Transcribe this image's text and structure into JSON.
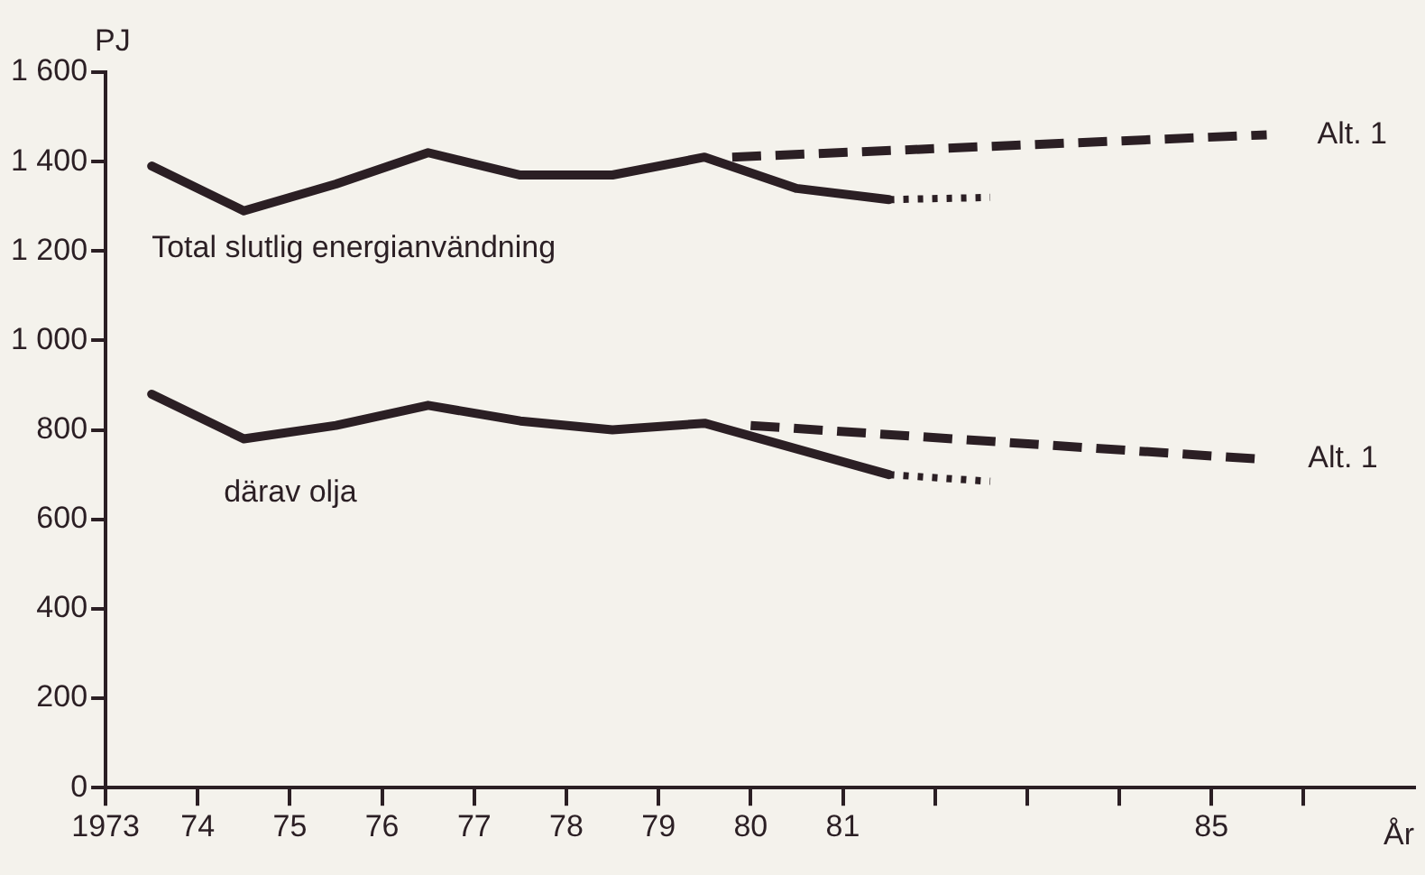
{
  "chart_data": {
    "type": "line",
    "xlabel": "År",
    "ylabel": "PJ",
    "xlim": [
      1973,
      1987.2
    ],
    "ylim": [
      0,
      1600
    ],
    "xticks": [
      {
        "value": 1973,
        "label": "1973"
      },
      {
        "value": 1974,
        "label": "74"
      },
      {
        "value": 1975,
        "label": "75"
      },
      {
        "value": 1976,
        "label": "76"
      },
      {
        "value": 1977,
        "label": "77"
      },
      {
        "value": 1978,
        "label": "78"
      },
      {
        "value": 1979,
        "label": "79"
      },
      {
        "value": 1980,
        "label": "80"
      },
      {
        "value": 1981,
        "label": "81"
      },
      {
        "value": 1982,
        "label": null
      },
      {
        "value": 1983,
        "label": null
      },
      {
        "value": 1984,
        "label": null
      },
      {
        "value": 1985,
        "label": "85"
      },
      {
        "value": 1986,
        "label": null
      }
    ],
    "yticks": [
      0,
      200,
      400,
      600,
      800,
      {
        "value": 1000,
        "label": "1 000"
      },
      {
        "value": 1200,
        "label": "1 200"
      },
      {
        "value": 1400,
        "label": "1 400"
      },
      {
        "value": 1600,
        "label": "1 600"
      }
    ],
    "grid": false,
    "legend": false,
    "marker": "none",
    "series": [
      {
        "name": "Total slutlig energianvändning",
        "color": "#2b1f24",
        "line_style": "solid",
        "x": [
          1973.5,
          1974.5,
          1975.5,
          1976.5,
          1977.5,
          1978.5,
          1979.5,
          1980.5,
          1981.5
        ],
        "values": [
          1390,
          1290,
          1350,
          1420,
          1370,
          1370,
          1410,
          1340,
          1315
        ]
      },
      {
        "color": "#2b1f24",
        "line_style": "dotted",
        "x": [
          1981.5,
          1982.6
        ],
        "values": [
          1315,
          1320
        ]
      },
      {
        "name": "Alt. 1",
        "color": "#2b1f24",
        "line_style": "dashed",
        "x": [
          1979.8,
          1985.6
        ],
        "values": [
          1410,
          1460
        ]
      },
      {
        "name": "därav olja",
        "color": "#2b1f24",
        "line_style": "solid",
        "x": [
          1973.5,
          1974.5,
          1975.5,
          1976.5,
          1977.5,
          1978.5,
          1979.5,
          1981.5
        ],
        "values": [
          880,
          780,
          810,
          855,
          820,
          800,
          815,
          700
        ]
      },
      {
        "color": "#2b1f24",
        "line_style": "dotted",
        "x": [
          1981.5,
          1982.6
        ],
        "values": [
          700,
          685
        ]
      },
      {
        "name": "Alt. 1",
        "color": "#2b1f24",
        "line_style": "dashed",
        "x": [
          1980,
          1985.5
        ],
        "values": [
          810,
          735
        ]
      }
    ]
  }
}
